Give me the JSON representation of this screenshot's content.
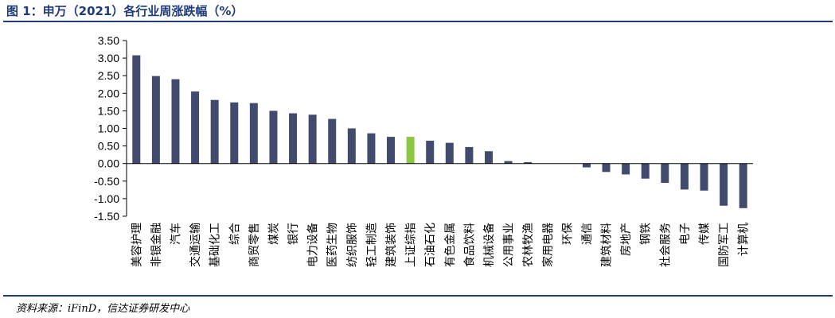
{
  "header": {
    "title": "图 1：申万（2021）各行业周涨跌幅（%）"
  },
  "footer": {
    "source": "资料来源：iFinD，信达证券研发中心"
  },
  "colors": {
    "bar": "#414b6e",
    "highlight": "#8dc63f",
    "accent": "#1f3b78"
  },
  "chart_data": {
    "type": "bar",
    "title": "",
    "xlabel": "",
    "ylabel": "",
    "ylim": [
      -1.5,
      3.5
    ],
    "yticks": [
      "3.50",
      "3.00",
      "2.50",
      "2.00",
      "1.50",
      "1.00",
      "0.50",
      "0.00",
      "-0.50",
      "-1.00",
      "-1.50"
    ],
    "grid": false,
    "highlight_category": "上证综指",
    "categories": [
      "美容护理",
      "非银金融",
      "汽车",
      "交通运输",
      "基础化工",
      "综合",
      "商贸零售",
      "煤炭",
      "银行",
      "电力设备",
      "医药生物",
      "纺织服饰",
      "轻工制造",
      "建筑装饰",
      "上证综指",
      "石油石化",
      "有色金属",
      "食品饮料",
      "机械设备",
      "公用事业",
      "农林牧渔",
      "家用电器",
      "环保",
      "通信",
      "建筑材料",
      "房地产",
      "钢铁",
      "社会服务",
      "电子",
      "传媒",
      "国防军工",
      "计算机"
    ],
    "values": [
      3.08,
      2.49,
      2.4,
      2.05,
      1.81,
      1.74,
      1.72,
      1.5,
      1.43,
      1.39,
      1.27,
      1.0,
      0.86,
      0.76,
      0.76,
      0.65,
      0.59,
      0.47,
      0.35,
      0.07,
      0.04,
      0.0,
      0.0,
      -0.11,
      -0.24,
      -0.31,
      -0.43,
      -0.55,
      -0.74,
      -0.77,
      -1.2,
      -1.27
    ]
  }
}
